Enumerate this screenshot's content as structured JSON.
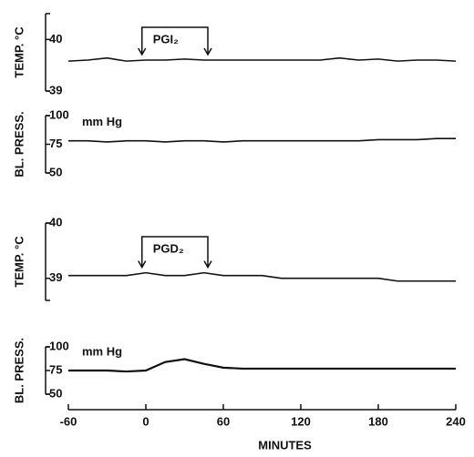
{
  "chart_data": [
    {
      "type": "line",
      "ylabel": "TEMP. °C",
      "ylim": [
        39,
        40.5
      ],
      "yticks": [
        39,
        40
      ],
      "xlim": [
        -60,
        240
      ],
      "x": [
        -60,
        -45,
        -30,
        -15,
        0,
        15,
        30,
        45,
        60,
        75,
        90,
        105,
        120,
        135,
        150,
        165,
        180,
        195,
        210,
        225,
        240
      ],
      "values": [
        39.58,
        39.6,
        39.64,
        39.58,
        39.6,
        39.6,
        39.62,
        39.6,
        39.6,
        39.6,
        39.6,
        39.6,
        39.6,
        39.6,
        39.64,
        39.6,
        39.62,
        39.58,
        39.6,
        39.6,
        39.58
      ],
      "color": "#111",
      "annotation": {
        "text": "PGI₂",
        "x": [
          -3,
          48
        ]
      }
    },
    {
      "type": "line",
      "ylabel": "BL. PRESS.",
      "ylim": [
        50,
        100
      ],
      "yticks": [
        50,
        75,
        100
      ],
      "xlim": [
        -60,
        240
      ],
      "x": [
        -60,
        -45,
        -30,
        -15,
        0,
        15,
        30,
        45,
        60,
        75,
        90,
        105,
        120,
        135,
        150,
        165,
        180,
        195,
        210,
        225,
        240
      ],
      "values": [
        78,
        78,
        77,
        78,
        78,
        77,
        78,
        78,
        77,
        78,
        78,
        78,
        78,
        78,
        78,
        78,
        79,
        79,
        79,
        80,
        80
      ],
      "color": "#111",
      "unit_label": "mm Hg"
    },
    {
      "type": "line",
      "ylabel": "TEMP. °C",
      "ylim": [
        38.6,
        40
      ],
      "yticks": [
        39,
        40
      ],
      "xlim": [
        -60,
        240
      ],
      "x": [
        -60,
        -45,
        -30,
        -15,
        0,
        15,
        30,
        45,
        60,
        75,
        90,
        105,
        120,
        135,
        150,
        165,
        180,
        195,
        210,
        225,
        240
      ],
      "values": [
        39.05,
        39.05,
        39.05,
        39.05,
        39.1,
        39.05,
        39.05,
        39.1,
        39.05,
        39.05,
        39.05,
        39.0,
        39.0,
        39.0,
        39.0,
        39.0,
        39.0,
        38.95,
        38.95,
        38.95,
        38.95
      ],
      "color": "#111",
      "annotation": {
        "text": "PGD₂",
        "x": [
          -3,
          48
        ]
      }
    },
    {
      "type": "line",
      "ylabel": "BL. PRESS.",
      "ylim": [
        50,
        100
      ],
      "yticks": [
        50,
        75,
        100
      ],
      "xlim": [
        -60,
        240
      ],
      "x": [
        -60,
        -45,
        -30,
        -15,
        0,
        15,
        30,
        45,
        60,
        75,
        90,
        105,
        120,
        135,
        150,
        165,
        180,
        195,
        210,
        225,
        240
      ],
      "values": [
        75,
        75,
        75,
        74,
        75,
        84,
        87,
        82,
        78,
        77,
        77,
        77,
        77,
        77,
        77,
        77,
        77,
        77,
        77,
        77,
        77
      ],
      "color": "#111",
      "unit_label": "mm Hg",
      "xticks": [
        -60,
        0,
        60,
        120,
        180,
        240
      ],
      "xlabel": "MINUTES"
    }
  ]
}
